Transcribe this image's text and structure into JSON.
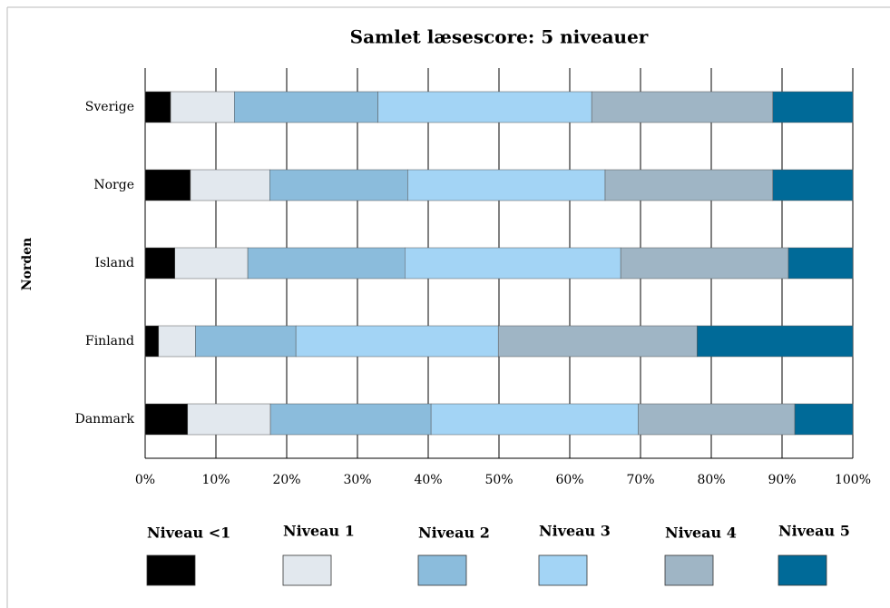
{
  "chart_data": {
    "type": "stacked_barh",
    "title": "Samlet læsescore: 5 niveauer",
    "y_label": "Norden",
    "categories": [
      "Sverige",
      "Norge",
      "Island",
      "Finland",
      "Danmark"
    ],
    "series": [
      {
        "name": "Niveau <1",
        "color": "#000000",
        "values": [
          3.6,
          6.4,
          4.2,
          1.9,
          6.0
        ]
      },
      {
        "name": "Niveau 1",
        "color": "#e2e8ee",
        "values": [
          9.0,
          11.2,
          10.3,
          5.2,
          11.7
        ]
      },
      {
        "name": "Niveau 2",
        "color": "#8bbcdc",
        "values": [
          20.3,
          19.5,
          22.2,
          14.2,
          22.7
        ]
      },
      {
        "name": "Niveau 3",
        "color": "#a3d4f5",
        "values": [
          30.2,
          27.9,
          30.5,
          28.6,
          29.3
        ]
      },
      {
        "name": "Niveau 4",
        "color": "#9fb5c5",
        "values": [
          25.6,
          23.7,
          23.7,
          28.1,
          22.1
        ]
      },
      {
        "name": "Niveau 5",
        "color": "#006a98",
        "values": [
          11.3,
          11.3,
          9.1,
          22.0,
          8.2
        ]
      }
    ],
    "xlim": [
      0,
      100
    ],
    "xticks": [
      {
        "value": 0,
        "label": "0%"
      },
      {
        "value": 10,
        "label": "10%"
      },
      {
        "value": 20,
        "label": "20%"
      },
      {
        "value": 30,
        "label": "30%"
      },
      {
        "value": 40,
        "label": "40%"
      },
      {
        "value": 50,
        "label": "50%"
      },
      {
        "value": 60,
        "label": "60%"
      },
      {
        "value": 70,
        "label": "70%"
      },
      {
        "value": 80,
        "label": "80%"
      },
      {
        "value": 90,
        "label": "90%"
      },
      {
        "value": 100,
        "label": "100%"
      }
    ],
    "grid": true,
    "legend": "bottom"
  }
}
